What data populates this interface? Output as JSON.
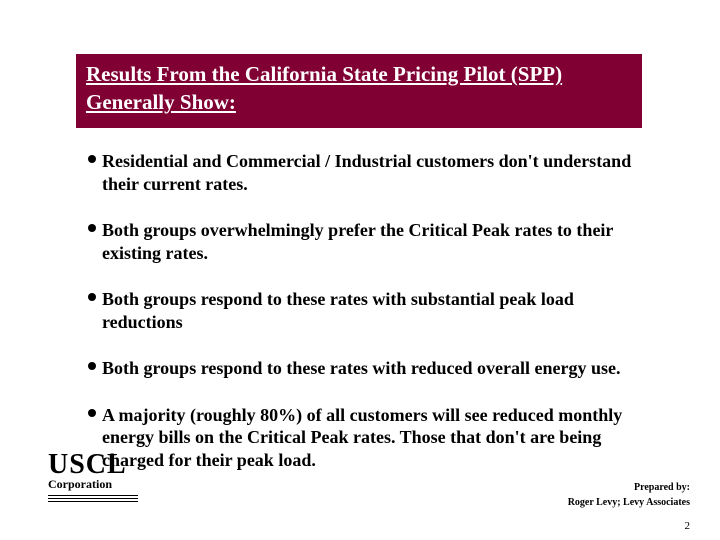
{
  "title": {
    "text_line1": "Results From the California State Pricing Pilot (SPP) Generally Show:"
  },
  "bullets": [
    "Residential and Commercial / Industrial customers don't understand   their current rates.",
    "Both groups overwhelmingly prefer the Critical Peak rates to their existing rates.",
    "Both groups respond to these rates with substantial peak load reductions",
    "Both groups respond to these rates with reduced overall energy use.",
    "A majority (roughly 80%) of all customers will see reduced monthly energy bills on the Critical Peak rates.  Those that don't are being charged for their peak load."
  ],
  "footer": {
    "logo_main": "USCL",
    "logo_sub": "Corporation",
    "prepared_label": "Prepared by:",
    "prepared_by": "Roger Levy; Levy Associates",
    "page_number": "2"
  },
  "styling": {
    "title_bg": "#800033",
    "title_color": "#ffffff",
    "title_fontsize": 21,
    "body_fontsize": 18,
    "body_color": "#000000",
    "page_bg": "#ffffff",
    "font_family": "Georgia, Times New Roman, serif"
  }
}
